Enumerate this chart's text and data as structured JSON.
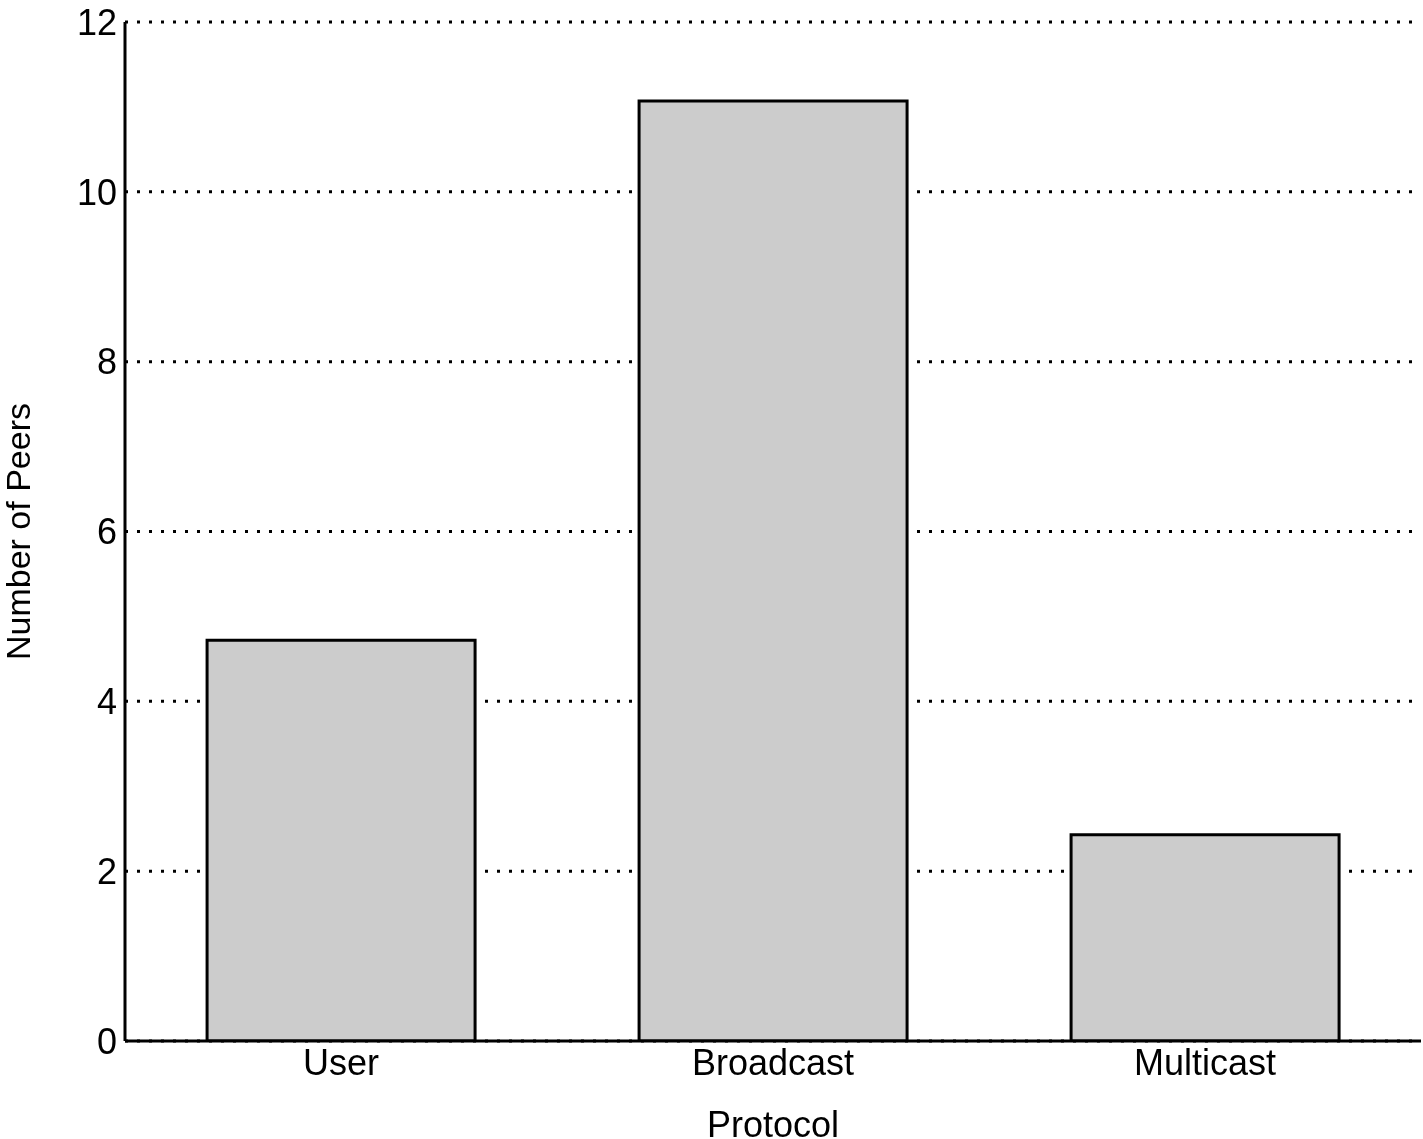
{
  "chart_data": {
    "type": "bar",
    "categories": [
      "User",
      "Broadcast",
      "Multicast"
    ],
    "values": [
      4.72,
      11.07,
      2.43
    ],
    "color": "#cccccc",
    "xlabel": "Protocol",
    "ylabel": "Number of Peers",
    "ylim": [
      0,
      12
    ],
    "yticks": [
      0,
      2,
      4,
      6,
      8,
      10,
      12
    ],
    "grid": "y"
  }
}
